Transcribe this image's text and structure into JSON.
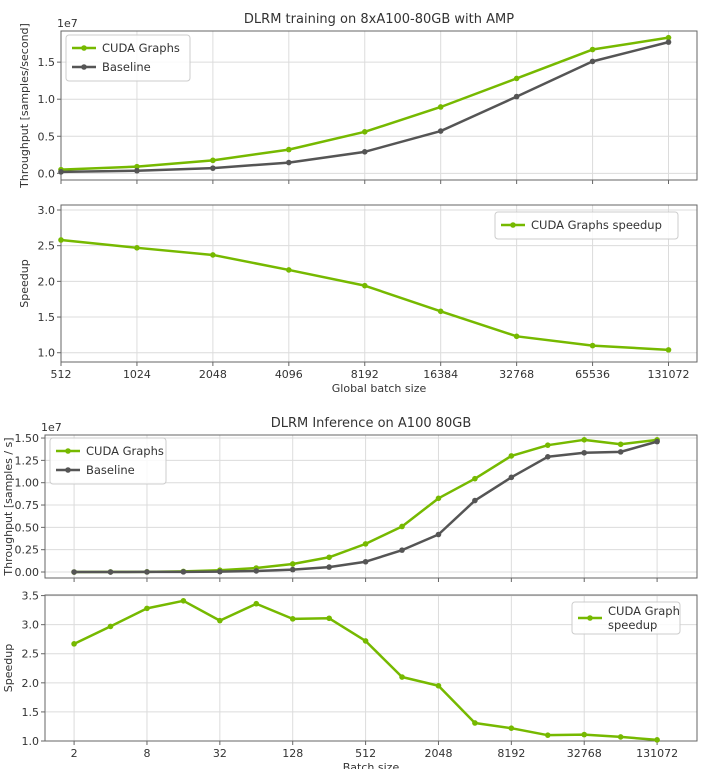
{
  "colors": {
    "cuda": "#76b900",
    "baseline": "#555555",
    "grid": "#dcdcdc",
    "axis": "#666666"
  },
  "chart_data": [
    {
      "type": "line",
      "title": "DLRM training on 8xA100-80GB with AMP",
      "ylabel": "Throughput [samples/second]",
      "xlabel": "",
      "y_multiplier_label": "1e7",
      "xscale": "log2",
      "x": [
        512,
        1024,
        2048,
        4096,
        8192,
        16384,
        32768,
        65536,
        131072
      ],
      "xticks": [
        512,
        1024,
        2048,
        4096,
        8192,
        16384,
        32768,
        65536,
        131072
      ],
      "xtick_labels_shown": false,
      "yticks": [
        0.0,
        0.5,
        1.0,
        1.5
      ],
      "ytick_labels": [
        "0.0",
        "0.5",
        "1.0",
        "1.5"
      ],
      "ylim": [
        -0.09,
        1.92
      ],
      "xlim": [
        512,
        170000
      ],
      "grid": true,
      "legend": "top-left",
      "series": [
        {
          "name": "CUDA Graphs",
          "color": "#76b900",
          "values": [
            0.05,
            0.09,
            0.175,
            0.32,
            0.56,
            0.895,
            1.28,
            1.67,
            1.83
          ]
        },
        {
          "name": "Baseline",
          "color": "#555555",
          "values": [
            0.02,
            0.035,
            0.07,
            0.145,
            0.29,
            0.57,
            1.035,
            1.51,
            1.77
          ]
        }
      ]
    },
    {
      "type": "line",
      "title": "",
      "ylabel": "Speedup",
      "xlabel": "Global batch size",
      "xscale": "log2",
      "x": [
        512,
        1024,
        2048,
        4096,
        8192,
        16384,
        32768,
        65536,
        131072
      ],
      "xticks": [
        512,
        1024,
        2048,
        4096,
        8192,
        16384,
        32768,
        65536,
        131072
      ],
      "xtick_labels": [
        "512",
        "1024",
        "2048",
        "4096",
        "8192",
        "16384",
        "32768",
        "65536",
        "131072"
      ],
      "xtick_labels_shown": true,
      "yticks": [
        1.0,
        1.5,
        2.0,
        2.5,
        3.0
      ],
      "ytick_labels": [
        "1.0",
        "1.5",
        "2.0",
        "2.5",
        "3.0"
      ],
      "ylim": [
        0.87,
        3.07
      ],
      "xlim": [
        512,
        170000
      ],
      "grid": true,
      "legend": "top-right",
      "series": [
        {
          "name": "CUDA Graphs speedup",
          "color": "#76b900",
          "values": [
            2.58,
            2.47,
            2.37,
            2.16,
            1.94,
            1.58,
            1.23,
            1.1,
            1.04
          ]
        }
      ]
    },
    {
      "type": "line",
      "title": "DLRM Inference on A100 80GB",
      "ylabel": "Throughput [samples / s]",
      "xlabel": "",
      "y_multiplier_label": "1e7",
      "xscale": "log2",
      "x": [
        2,
        4,
        8,
        16,
        32,
        64,
        128,
        256,
        512,
        1024,
        2048,
        4096,
        8192,
        16384,
        32768,
        65536,
        131072
      ],
      "xticks": [
        2,
        8,
        32,
        128,
        512,
        2048,
        8192,
        32768,
        131072
      ],
      "xtick_labels_shown": false,
      "yticks": [
        0.0,
        0.25,
        0.5,
        0.75,
        1.0,
        1.25,
        1.5
      ],
      "ytick_labels": [
        "0.00",
        "0.25",
        "0.50",
        "0.75",
        "1.00",
        "1.25",
        "1.50"
      ],
      "ylim": [
        -0.067,
        1.534
      ],
      "xlim": [
        1.15,
        280000
      ],
      "grid": true,
      "legend": "top-left",
      "series": [
        {
          "name": "CUDA Graphs",
          "color": "#76b900",
          "values": [
            0.0,
            0.001,
            0.002,
            0.007,
            0.02,
            0.045,
            0.09,
            0.165,
            0.315,
            0.51,
            0.825,
            1.045,
            1.3,
            1.42,
            1.48,
            1.43,
            1.48
          ]
        },
        {
          "name": "Baseline",
          "color": "#555555",
          "values": [
            0.0,
            0.0,
            0.001,
            0.002,
            0.004,
            0.012,
            0.027,
            0.055,
            0.115,
            0.245,
            0.42,
            0.8,
            1.06,
            1.29,
            1.335,
            1.345,
            1.46
          ]
        }
      ]
    },
    {
      "type": "line",
      "title": "",
      "ylabel": "Speedup",
      "xlabel": "Batch size",
      "xscale": "log2",
      "x": [
        2,
        4,
        8,
        16,
        32,
        64,
        128,
        256,
        512,
        1024,
        2048,
        4096,
        8192,
        16384,
        32768,
        65536,
        131072
      ],
      "xticks": [
        2,
        8,
        32,
        128,
        512,
        2048,
        8192,
        32768,
        131072
      ],
      "xtick_labels": [
        "2",
        "8",
        "32",
        "128",
        "512",
        "2048",
        "8192",
        "32768",
        "131072"
      ],
      "xtick_labels_shown": true,
      "yticks": [
        1.0,
        1.5,
        2.0,
        2.5,
        3.0,
        3.5
      ],
      "ytick_labels": [
        "1.0",
        "1.5",
        "2.0",
        "2.5",
        "3.0",
        "3.5"
      ],
      "ylim": [
        1.0,
        3.51
      ],
      "xlim": [
        1.15,
        280000
      ],
      "grid": true,
      "legend": "top-right",
      "series": [
        {
          "name": "CUDA Graph\nspeedup",
          "name_lines": [
            "CUDA Graph",
            "speedup"
          ],
          "color": "#76b900",
          "values": [
            2.67,
            2.97,
            3.28,
            3.41,
            3.07,
            3.36,
            3.1,
            3.11,
            2.72,
            2.1,
            1.95,
            1.31,
            1.22,
            1.1,
            1.11,
            1.07,
            1.02
          ]
        }
      ]
    }
  ]
}
